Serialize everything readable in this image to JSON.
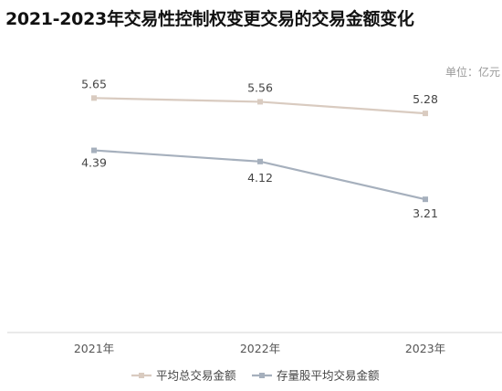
{
  "chart_data": {
    "type": "line",
    "title": "2021-2023年交易性控制权变更交易的交易金额变化",
    "unit_label": "单位：亿元",
    "categories": [
      "2021年",
      "2022年",
      "2023年"
    ],
    "series": [
      {
        "name": "平均总交易金额",
        "values": [
          5.65,
          5.56,
          5.28
        ],
        "value_labels": [
          "5.65",
          "5.56",
          "5.28"
        ],
        "color": "#d9cbc0"
      },
      {
        "name": "存量股平均交易金额",
        "values": [
          4.39,
          4.12,
          3.21
        ],
        "value_labels": [
          "4.39",
          "4.12",
          "3.21"
        ],
        "color": "#a6b0bd"
      }
    ],
    "ylim": [
      0,
      7
    ],
    "grid": false,
    "legend_position": "bottom"
  }
}
